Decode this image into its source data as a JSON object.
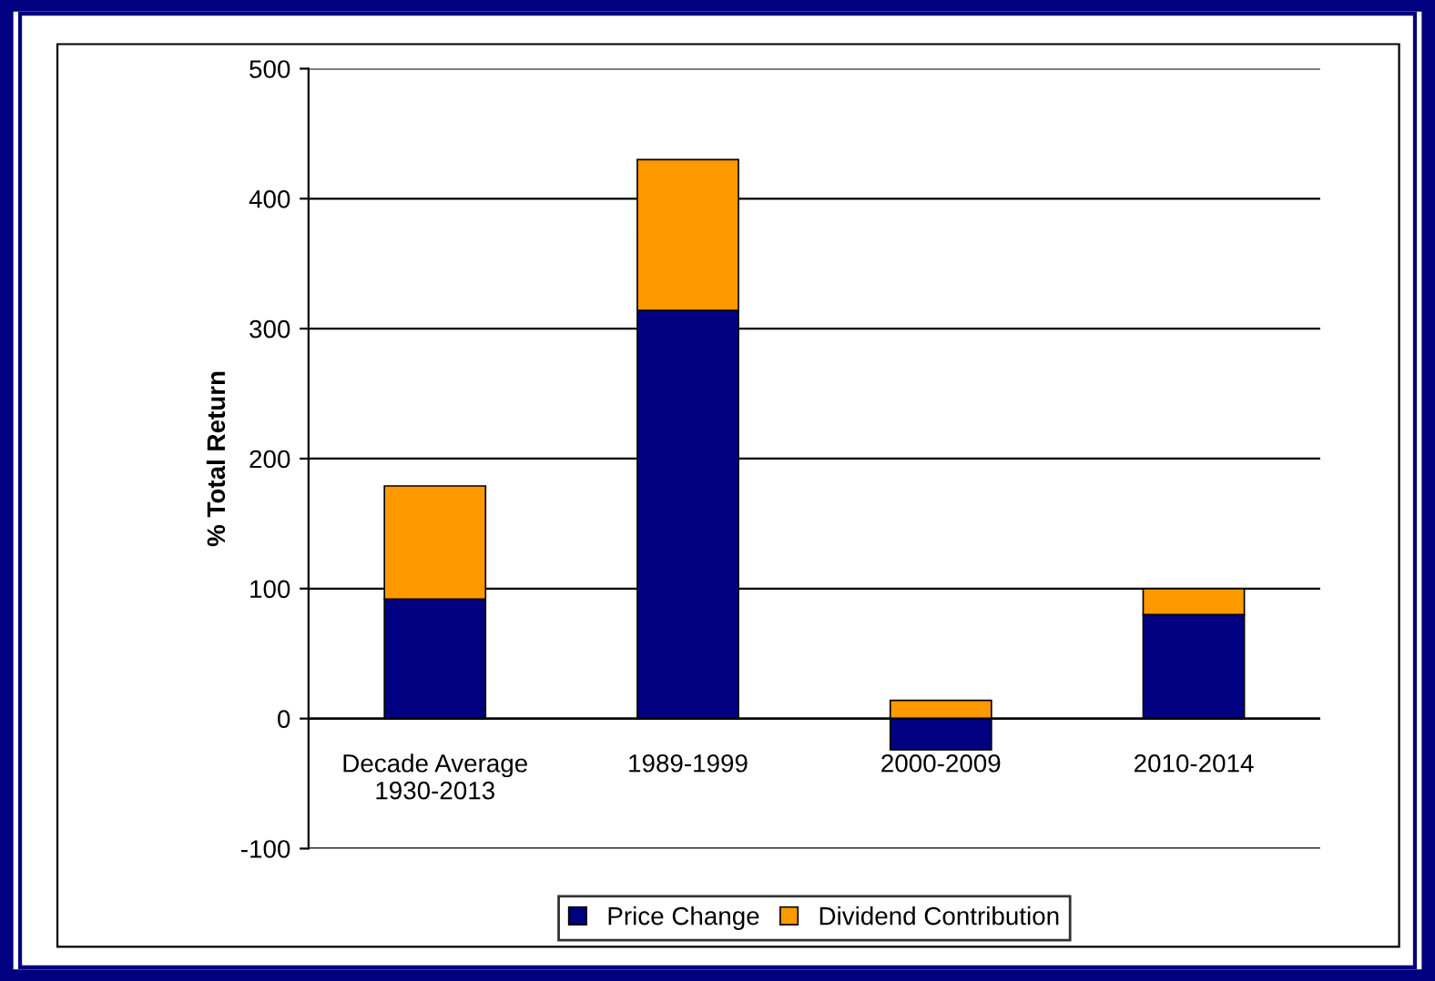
{
  "chart_data": {
    "type": "bar",
    "stacked": true,
    "ylabel": "% Total Return",
    "categories": [
      "Decade Average\n1930-2013",
      "1989-1999",
      "2000-2009",
      "2010-2014"
    ],
    "series": [
      {
        "name": "Price Change",
        "color": "#000080",
        "values": [
          92,
          314,
          -24,
          80
        ]
      },
      {
        "name": "Dividend Contribution",
        "color": "#ff9900",
        "values": [
          87,
          116,
          14,
          20
        ]
      }
    ],
    "ylim": [
      -100,
      500
    ],
    "yticks": [
      -100,
      0,
      100,
      200,
      300,
      400,
      500
    ],
    "grid": "y",
    "legend": "bottom"
  }
}
